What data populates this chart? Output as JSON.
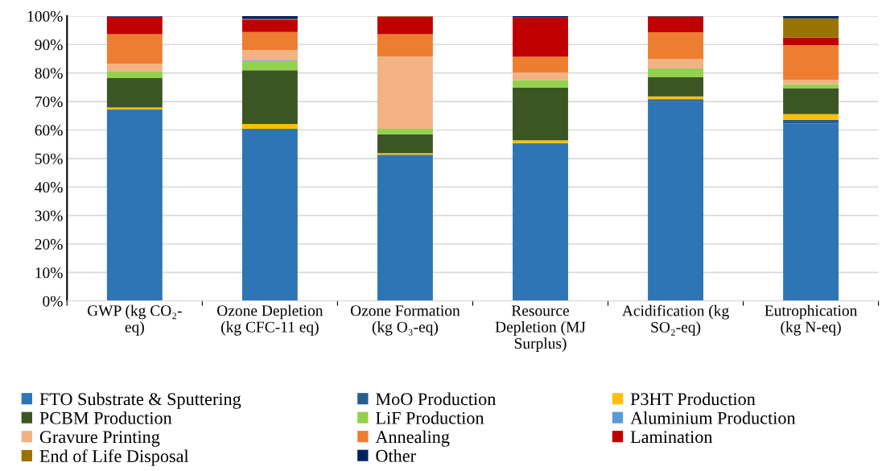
{
  "chart_data": {
    "type": "bar",
    "stacked": true,
    "categories": [
      "GWP (kg CO₂-\neq)",
      "Ozone Depletion\n(kg CFC-11 eq)",
      "Ozone Formation\n(kg O₃-eq)",
      "Resource\nDepletion (MJ\nSurplus)",
      "Acidification (kg\nSO₂-eq)",
      "Eutrophication\n(kg N-eq)"
    ],
    "series": [
      {
        "name": "FTO Substrate & Sputtering",
        "color": "#2e75b6",
        "values": [
          67.0,
          60.4,
          51.1,
          55.4,
          70.1,
          62.3
        ]
      },
      {
        "name": "MoO Production",
        "color": "#255e91",
        "values": [
          0.2,
          0,
          0.2,
          0,
          0.7,
          1.3
        ]
      },
      {
        "name": "P3HT Production",
        "color": "#ffc000",
        "values": [
          0.7,
          1.7,
          0.6,
          1.0,
          1.0,
          2.0
        ]
      },
      {
        "name": "PCBM Production",
        "color": "#3b5623",
        "values": [
          10.3,
          18.9,
          6.6,
          18.4,
          6.7,
          9.1
        ]
      },
      {
        "name": "LiF Production",
        "color": "#92d050",
        "values": [
          2.5,
          3.2,
          1.9,
          2.7,
          3.1,
          1.4
        ]
      },
      {
        "name": "Aluminium Production",
        "color": "#5b9bd5",
        "values": [
          null,
          0.2,
          0,
          0,
          0,
          0
        ]
      },
      {
        "name": "Gravure Printing",
        "color": "#f4b183",
        "values": [
          2.5,
          3.7,
          25.4,
          2.7,
          3.3,
          1.5
        ]
      },
      {
        "name": "Annealing",
        "color": "#ed7d31",
        "values": [
          10.4,
          6.3,
          7.8,
          5.5,
          9.4,
          12.2
        ]
      },
      {
        "name": "Lamination",
        "color": "#c00000",
        "values": [
          6.1,
          4.4,
          6.2,
          13.8,
          5.5,
          2.7
        ]
      },
      {
        "name": "End of Life Disposal",
        "color": "#997300",
        "values": [
          0,
          0.2,
          0.2,
          0,
          0,
          6.7
        ]
      },
      {
        "name": "Other",
        "color": "#002060",
        "values": [
          0.2,
          1.0,
          0,
          0.5,
          0.2,
          0.8
        ]
      }
    ],
    "ylim": [
      0,
      100
    ],
    "yticks": [
      {
        "value": 0,
        "label": "0%"
      },
      {
        "value": 10,
        "label": "10%"
      },
      {
        "value": 20,
        "label": "20%"
      },
      {
        "value": 30,
        "label": "30%"
      },
      {
        "value": 40,
        "label": "40%"
      },
      {
        "value": 50,
        "label": "50%"
      },
      {
        "value": 60,
        "label": "60%"
      },
      {
        "value": 70,
        "label": "70%"
      },
      {
        "value": 80,
        "label": "80%"
      },
      {
        "value": 90,
        "label": "90%"
      },
      {
        "value": 100,
        "label": "100%"
      }
    ],
    "grid": "y",
    "legend": "bottom"
  }
}
